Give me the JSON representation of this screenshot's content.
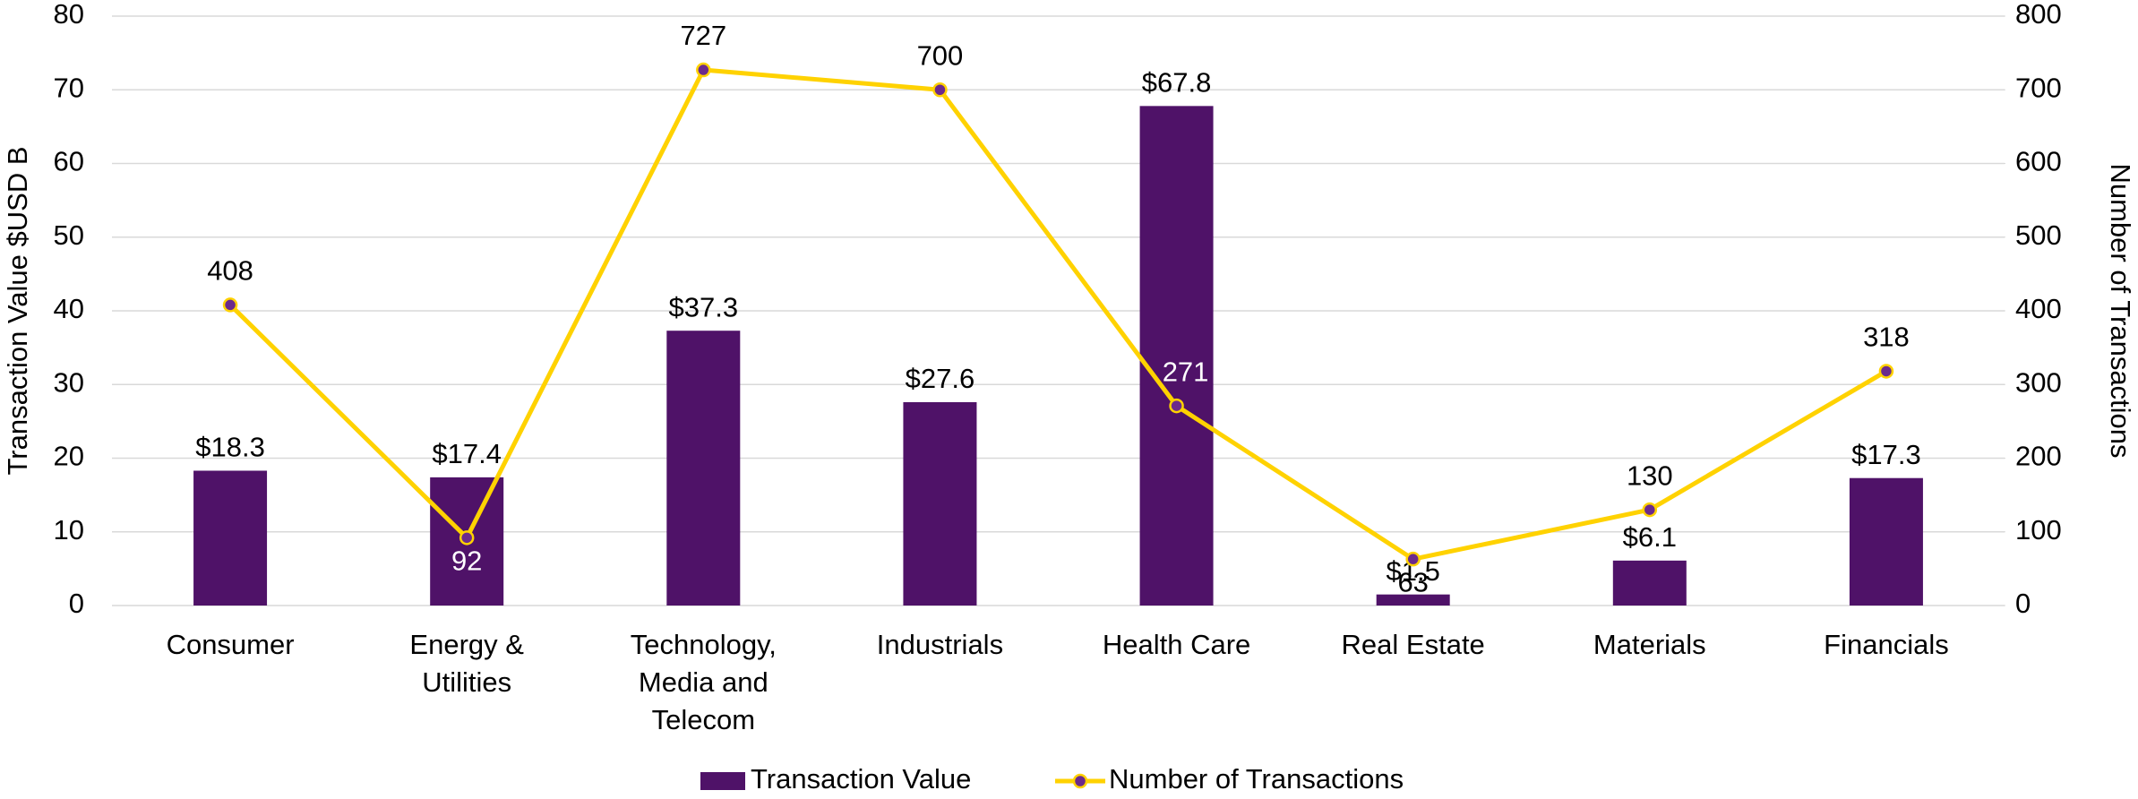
{
  "chart_data": {
    "type": "bar_line",
    "categories": [
      "Consumer",
      "Energy &\nUtilities",
      "Technology,\nMedia and\nTelecom",
      "Industrials",
      "Health Care",
      "Real Estate",
      "Materials",
      "Financials"
    ],
    "ylabel": "Transaction Value $USD B",
    "y2label": "Number of Transactions",
    "ylim": [
      0,
      80
    ],
    "yticks": [
      0,
      10,
      20,
      30,
      40,
      50,
      60,
      70,
      80
    ],
    "y2lim": [
      0,
      800
    ],
    "y2ticks": [
      0,
      100,
      200,
      300,
      400,
      500,
      600,
      700,
      800
    ],
    "grid": true,
    "legend": "bottom",
    "series": [
      {
        "name": "Transaction Value",
        "type": "bar",
        "color": "#4f1268",
        "values": [
          18.3,
          17.4,
          37.3,
          27.6,
          67.8,
          1.5,
          6.1,
          17.3
        ],
        "value_labels": [
          "$18.3",
          "$17.4",
          "$37.3",
          "$27.6",
          "$67.8",
          "$1.5",
          "$6.1",
          "$17.3"
        ]
      },
      {
        "name": "Number of Transactions",
        "type": "line",
        "axis": "y2",
        "color": "#ffd200",
        "marker_color": "#6b2a8c",
        "values": [
          408,
          92,
          727,
          700,
          271,
          63,
          130,
          318
        ]
      }
    ]
  }
}
